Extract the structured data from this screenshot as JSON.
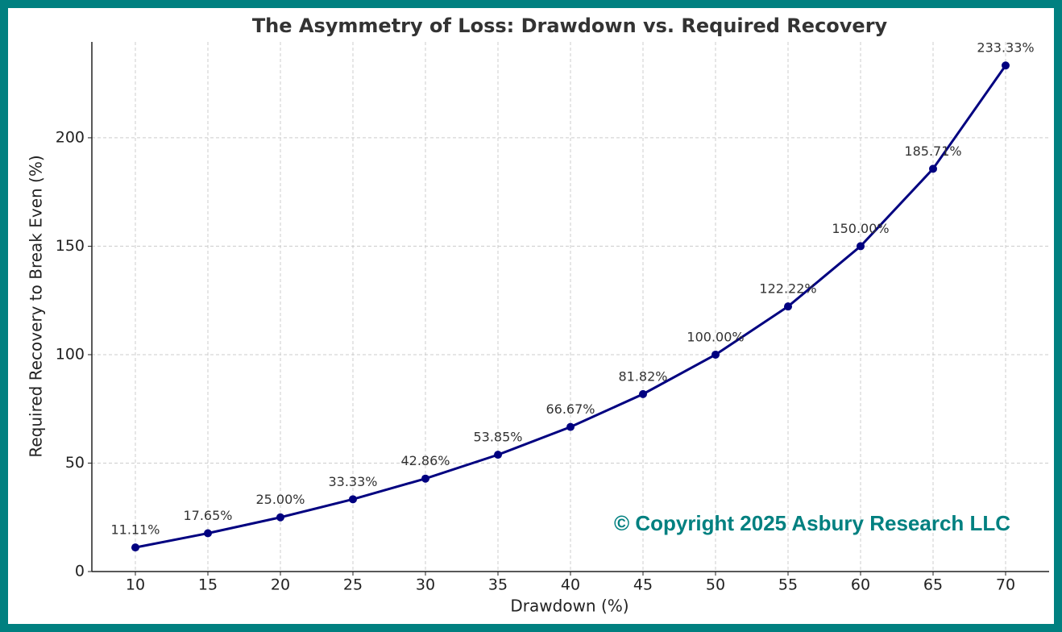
{
  "chart_data": {
    "type": "line",
    "title": "The Asymmetry of Loss: Drawdown vs. Required Recovery",
    "x_label": "Drawdown (%)",
    "y_label": "Required Recovery to Break Even (%)",
    "annotation": "© Copyright 2025 Asbury Research LLC",
    "x": [
      10,
      15,
      20,
      25,
      30,
      35,
      40,
      45,
      50,
      55,
      60,
      65,
      70
    ],
    "series": [
      {
        "color": "#000080",
        "values": [
          11.11,
          17.65,
          25.0,
          33.33,
          42.86,
          53.85,
          66.67,
          81.82,
          100.0,
          122.22,
          150.0,
          185.71,
          233.33
        ],
        "value_labels": [
          "11.11%",
          "17.65%",
          "25.00%",
          "33.33%",
          "42.86%",
          "53.85%",
          "66.67%",
          "81.82%",
          "100.00%",
          "122.22%",
          "150.00%",
          "185.71%",
          "233.33%"
        ]
      }
    ],
    "xlim": [
      7,
      73
    ],
    "ylim": [
      0,
      244.2
    ],
    "xticks": [
      10,
      15,
      20,
      25,
      30,
      35,
      40,
      45,
      50,
      55,
      60,
      65,
      70
    ],
    "yticks": [
      0,
      50,
      100,
      150,
      200
    ],
    "grid": true
  }
}
